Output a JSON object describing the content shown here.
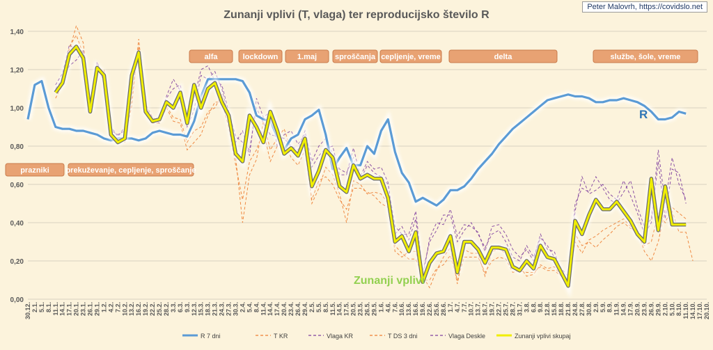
{
  "credit": "Peter Malovrh, https://covidslo.net",
  "chart_data": {
    "type": "line",
    "title": "Zunanji vplivi (T, vlaga) ter reproducijsko število R",
    "ylim": [
      0,
      1.4
    ],
    "yticks": [
      "0,00",
      "0,20",
      "0,40",
      "0,60",
      "0,80",
      "1,00",
      "1,20",
      "1,40"
    ],
    "grid": true,
    "legend_position": "bottom",
    "xticks": [
      "30.12.",
      "2.1.",
      "5.1.",
      "8.1.",
      "11.1.",
      "14.1.",
      "17.1.",
      "20.1.",
      "23.1.",
      "26.1.",
      "29.1.",
      "1.2.",
      "4.2.",
      "7.2.",
      "10.2.",
      "13.2.",
      "16.2.",
      "19.2.",
      "22.2.",
      "25.2.",
      "28.2.",
      "3.3.",
      "6.3.",
      "9.3.",
      "12.3.",
      "15.3.",
      "18.3.",
      "21.3.",
      "24.3.",
      "27.3.",
      "30.3.",
      "2.4.",
      "5.4.",
      "8.4.",
      "11.4.",
      "14.4.",
      "17.4.",
      "20.4.",
      "23.4.",
      "26.4.",
      "29.4.",
      "2.5.",
      "5.5.",
      "8.5.",
      "11.5.",
      "14.5.",
      "17.5.",
      "20.5.",
      "23.5.",
      "26.5.",
      "29.5.",
      "1.6.",
      "4.6.",
      "7.6.",
      "10.6.",
      "13.6.",
      "16.6.",
      "19.6.",
      "22.6.",
      "25.6.",
      "28.6.",
      "1.7.",
      "4.7.",
      "7.7.",
      "10.7.",
      "13.7.",
      "16.7.",
      "19.7.",
      "22.7.",
      "25.7.",
      "28.7.",
      "31.7.",
      "3.8.",
      "6.8.",
      "9.8.",
      "12.8.",
      "15.8.",
      "18.8.",
      "21.8.",
      "24.8.",
      "27.8.",
      "30.8.",
      "2.9.",
      "5.9.",
      "8.9.",
      "11.9.",
      "14.9.",
      "17.9.",
      "20.9.",
      "23.9.",
      "26.9.",
      "29.9.",
      "2.10.",
      "5.10.",
      "8.10.",
      "11.10.",
      "14.10.",
      "17.10.",
      "20.10."
    ],
    "series": [
      {
        "name": "R 7 dni",
        "color": "#5b9bd5",
        "style": "solid",
        "values": [
          0.94,
          1.12,
          1.14,
          1.0,
          0.9,
          0.89,
          0.89,
          0.88,
          0.88,
          0.87,
          0.86,
          0.84,
          0.83,
          0.84,
          0.84,
          0.84,
          0.83,
          0.84,
          0.87,
          0.88,
          0.87,
          0.86,
          0.86,
          0.85,
          0.93,
          1.06,
          1.15,
          1.15,
          1.15,
          1.15,
          1.15,
          1.14,
          1.08,
          0.96,
          0.94,
          0.93,
          0.85,
          0.78,
          0.84,
          0.86,
          0.94,
          0.96,
          0.99,
          0.86,
          0.68,
          0.74,
          0.79,
          0.7,
          0.7,
          0.8,
          0.76,
          0.88,
          0.94,
          0.77,
          0.66,
          0.61,
          0.51,
          0.53,
          0.51,
          0.49,
          0.52,
          0.57,
          0.57,
          0.59,
          0.63,
          0.68,
          0.72,
          0.76,
          0.81,
          0.85,
          0.89,
          0.92,
          0.95,
          0.98,
          1.01,
          1.04,
          1.05,
          1.06,
          1.07,
          1.06,
          1.06,
          1.05,
          1.03,
          1.03,
          1.04,
          1.04,
          1.05,
          1.04,
          1.03,
          1.01,
          0.98,
          0.94,
          0.94,
          0.95,
          0.98,
          0.97
        ]
      },
      {
        "name": "T KR",
        "color": "#ed7d31",
        "style": "dashed",
        "values": [
          null,
          null,
          null,
          null,
          1.05,
          1.12,
          1.3,
          1.43,
          1.34,
          1.0,
          1.19,
          1.18,
          0.83,
          0.84,
          0.84,
          1.01,
          1.36,
          1.02,
          0.95,
          0.93,
          1.01,
          0.95,
          0.94,
          0.82,
          0.88,
          0.9,
          0.98,
          1.0,
          1.07,
          0.95,
          0.74,
          0.4,
          0.65,
          0.73,
          0.93,
          0.78,
          0.84,
          0.89,
          0.78,
          0.74,
          0.84,
          0.5,
          0.58,
          0.69,
          0.65,
          0.55,
          0.4,
          0.62,
          0.6,
          0.55,
          0.56,
          0.55,
          0.5,
          0.28,
          0.24,
          0.21,
          0.21,
          0.12,
          0.06,
          0.15,
          0.22,
          0.27,
          0.08,
          0.26,
          0.24,
          0.24,
          0.12,
          0.25,
          0.26,
          0.24,
          0.16,
          0.17,
          0.12,
          0.13,
          0.18,
          0.16,
          0.17,
          0.12,
          0.06,
          0.34,
          0.28,
          0.3,
          0.27,
          0.31,
          0.34,
          0.38,
          0.4,
          0.37,
          0.36,
          0.25,
          0.2,
          0.3,
          0.47,
          0.46,
          0.35,
          0.35,
          0.2
        ]
      },
      {
        "name": "Vlaga KR",
        "color": "#7f3f9f",
        "style": "dashed",
        "values": [
          null,
          null,
          null,
          null,
          1.1,
          1.15,
          1.22,
          1.25,
          1.3,
          1.02,
          1.24,
          1.14,
          0.9,
          0.85,
          0.9,
          1.2,
          1.3,
          0.98,
          0.92,
          0.94,
          1.06,
          1.15,
          1.09,
          0.9,
          0.99,
          1.17,
          1.15,
          1.19,
          1.1,
          0.95,
          0.82,
          0.88,
          0.75,
          1.05,
          0.95,
          0.98,
          0.8,
          0.86,
          0.88,
          0.81,
          0.86,
          0.69,
          0.75,
          0.79,
          0.8,
          0.65,
          0.65,
          0.79,
          0.64,
          0.72,
          0.68,
          0.69,
          0.61,
          0.34,
          0.38,
          0.31,
          0.42,
          0.11,
          0.32,
          0.4,
          0.39,
          0.47,
          0.33,
          0.39,
          0.38,
          0.35,
          0.25,
          0.38,
          0.39,
          0.34,
          0.26,
          0.22,
          0.26,
          0.2,
          0.34,
          0.26,
          0.25,
          0.14,
          0.1,
          0.46,
          0.64,
          0.55,
          0.57,
          0.6,
          0.55,
          0.52,
          0.62,
          0.54,
          0.45,
          0.34,
          0.4,
          0.72,
          0.42,
          0.68,
          0.66,
          0.5
        ]
      },
      {
        "name": "T DS 3 dni",
        "color": "#ed7d31",
        "style": "dashed",
        "values": [
          null,
          null,
          null,
          null,
          1.08,
          1.14,
          1.32,
          1.38,
          1.28,
          0.98,
          1.2,
          1.2,
          0.84,
          0.83,
          0.82,
          1.05,
          1.32,
          0.97,
          0.92,
          0.92,
          1.0,
          0.93,
          0.92,
          0.78,
          0.82,
          0.86,
          0.96,
          1.03,
          1.03,
          0.9,
          0.7,
          0.52,
          0.72,
          0.78,
          0.88,
          0.72,
          0.8,
          0.82,
          0.74,
          0.7,
          0.78,
          0.52,
          0.62,
          0.64,
          0.6,
          0.52,
          0.47,
          0.58,
          0.58,
          0.56,
          0.54,
          0.5,
          0.48,
          0.25,
          0.22,
          0.25,
          0.25,
          0.1,
          0.1,
          0.16,
          0.18,
          0.23,
          0.1,
          0.22,
          0.22,
          0.22,
          0.14,
          0.2,
          0.22,
          0.21,
          0.14,
          0.15,
          0.14,
          0.14,
          0.17,
          0.15,
          0.15,
          0.12,
          0.08,
          0.3,
          0.24,
          0.31,
          0.33,
          0.36,
          0.38,
          0.4,
          0.42,
          0.38,
          0.33,
          0.28,
          0.3,
          0.45,
          0.4,
          0.48,
          0.45,
          0.42
        ]
      },
      {
        "name": "Vlaga Deskle",
        "color": "#7f3f9f",
        "style": "dashed",
        "values": [
          null,
          null,
          null,
          null,
          1.12,
          1.18,
          1.33,
          1.3,
          1.3,
          1.04,
          1.21,
          1.14,
          0.88,
          0.86,
          0.88,
          1.18,
          1.27,
          1.0,
          0.95,
          0.92,
          1.05,
          1.1,
          1.12,
          0.95,
          1.05,
          1.2,
          1.22,
          1.14,
          1.12,
          0.98,
          0.85,
          0.82,
          0.78,
          1.0,
          0.92,
          0.86,
          0.85,
          0.84,
          0.8,
          0.78,
          0.88,
          0.72,
          0.8,
          0.84,
          0.76,
          0.68,
          0.66,
          0.74,
          0.62,
          0.7,
          0.66,
          0.64,
          0.6,
          0.38,
          0.34,
          0.34,
          0.46,
          0.14,
          0.3,
          0.36,
          0.44,
          0.44,
          0.3,
          0.36,
          0.4,
          0.34,
          0.27,
          0.34,
          0.36,
          0.3,
          0.22,
          0.2,
          0.28,
          0.22,
          0.32,
          0.28,
          0.22,
          0.16,
          0.12,
          0.5,
          0.58,
          0.56,
          0.64,
          0.58,
          0.52,
          0.5,
          0.56,
          0.62,
          0.48,
          0.38,
          0.42,
          0.78,
          0.5,
          0.74,
          0.6,
          0.52
        ]
      },
      {
        "name": "Zunanji vplivi skupaj",
        "color": "#f0ee00",
        "style": "solid",
        "values": [
          null,
          null,
          null,
          null,
          1.08,
          1.13,
          1.28,
          1.32,
          1.26,
          0.98,
          1.21,
          1.17,
          0.86,
          0.82,
          0.84,
          1.17,
          1.29,
          0.98,
          0.93,
          0.94,
          1.03,
          1.0,
          1.08,
          0.92,
          1.12,
          1.0,
          1.1,
          1.13,
          1.03,
          0.96,
          0.76,
          0.72,
          0.96,
          0.9,
          0.82,
          0.98,
          0.88,
          0.76,
          0.79,
          0.75,
          0.84,
          0.59,
          0.67,
          0.78,
          0.74,
          0.59,
          0.56,
          0.7,
          0.63,
          0.65,
          0.63,
          0.63,
          0.53,
          0.3,
          0.33,
          0.25,
          0.35,
          0.09,
          0.19,
          0.24,
          0.25,
          0.33,
          0.14,
          0.3,
          0.3,
          0.26,
          0.19,
          0.27,
          0.27,
          0.26,
          0.17,
          0.15,
          0.2,
          0.16,
          0.28,
          0.22,
          0.21,
          0.14,
          0.07,
          0.41,
          0.34,
          0.44,
          0.52,
          0.47,
          0.47,
          0.51,
          0.46,
          0.41,
          0.34,
          0.3,
          0.63,
          0.36,
          0.59,
          0.39,
          0.39,
          0.39
        ]
      }
    ],
    "annotations": [
      {
        "text": "alfa"
      },
      {
        "text": "lockdown"
      },
      {
        "text": "1.maj"
      },
      {
        "text": "sproščanja"
      },
      {
        "text": "cepljenje, vreme"
      },
      {
        "text": "delta"
      },
      {
        "text": "službe, šole, vreme"
      },
      {
        "text": "prazniki"
      },
      {
        "text": "prekuževanje, cepljenje, sproščanje"
      }
    ],
    "labels": {
      "r_label": "R",
      "external_label": "Zunanji vplivi"
    }
  }
}
